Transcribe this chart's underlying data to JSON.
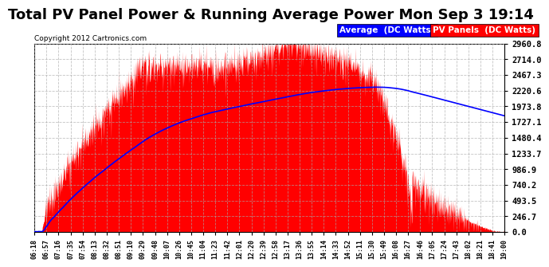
{
  "title": "Total PV Panel Power & Running Average Power Mon Sep 3 19:14",
  "copyright": "Copyright 2012 Cartronics.com",
  "ylabel_ticks": [
    0.0,
    246.7,
    493.5,
    740.2,
    986.9,
    1233.7,
    1480.4,
    1727.1,
    1973.8,
    2220.6,
    2467.3,
    2714.0,
    2960.8
  ],
  "legend_avg_label": "Average  (DC Watts)",
  "legend_pv_label": "PV Panels  (DC Watts)",
  "pv_color": "#FF0000",
  "avg_color": "#0000FF",
  "background_color": "#FFFFFF",
  "plot_bg_color": "#FFFFFF",
  "grid_color": "#AAAAAA",
  "title_fontsize": 13,
  "x_tick_labels": [
    "06:18",
    "06:57",
    "07:16",
    "07:35",
    "07:54",
    "08:13",
    "08:32",
    "08:51",
    "09:10",
    "09:29",
    "09:48",
    "10:07",
    "10:26",
    "10:45",
    "11:04",
    "11:23",
    "11:42",
    "12:01",
    "12:20",
    "12:39",
    "12:58",
    "13:17",
    "13:36",
    "13:55",
    "14:14",
    "14:33",
    "14:52",
    "15:11",
    "15:30",
    "15:49",
    "16:08",
    "16:27",
    "16:46",
    "17:05",
    "17:24",
    "17:43",
    "18:02",
    "18:21",
    "18:41",
    "19:00"
  ],
  "ymax": 2960.8,
  "ymin": 0.0
}
